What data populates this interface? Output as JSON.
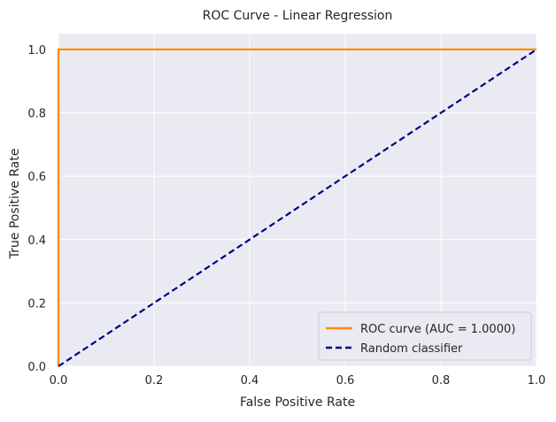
{
  "chart_data": {
    "type": "line",
    "title": "ROC Curve - Linear Regression",
    "xlabel": "False Positive Rate",
    "ylabel": "True Positive Rate",
    "xlim": [
      0.0,
      1.0
    ],
    "ylim": [
      0.0,
      1.05
    ],
    "x_ticks": [
      0.0,
      0.2,
      0.4,
      0.6,
      0.8,
      1.0
    ],
    "y_ticks": [
      0.0,
      0.2,
      0.4,
      0.6,
      0.8,
      1.0
    ],
    "x_tick_labels": [
      "0.0",
      "0.2",
      "0.4",
      "0.6",
      "0.8",
      "1.0"
    ],
    "y_tick_labels": [
      "0.0",
      "0.2",
      "0.4",
      "0.6",
      "0.8",
      "1.0"
    ],
    "grid": true,
    "legend_position": "lower-right",
    "series": [
      {
        "name": "ROC curve (AUC = 1.0000)",
        "color": "#ff8c00",
        "line_style": "solid",
        "x": [
          0.0,
          0.0,
          1.0
        ],
        "y": [
          0.0,
          1.0,
          1.0
        ]
      },
      {
        "name": "Random classifier",
        "color": "#000080",
        "line_style": "dashed",
        "x": [
          0.0,
          1.0
        ],
        "y": [
          0.0,
          1.0
        ]
      }
    ]
  },
  "colors": {
    "plot_background": "#eaeaf2",
    "grid": "#ffffff",
    "text": "#262626"
  }
}
